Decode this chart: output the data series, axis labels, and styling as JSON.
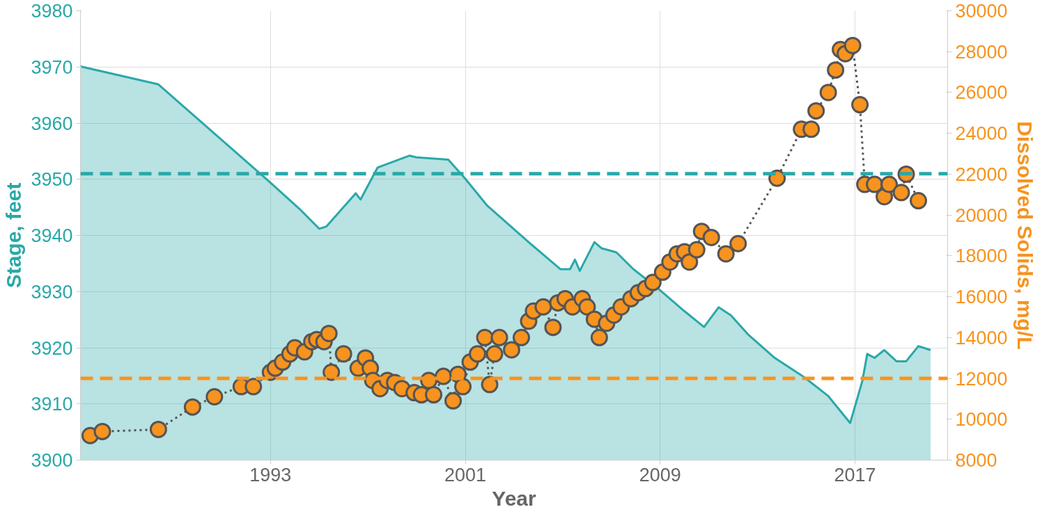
{
  "chart_data": {
    "type": "area",
    "xlabel": "Year",
    "ylabel": "Stage, feet",
    "y2label": "Dissolved Solids, mg/L",
    "xlim": [
      1985.2,
      2020.8
    ],
    "xticks": [
      1993,
      2001,
      2009,
      2017
    ],
    "ylim": [
      3900,
      3980
    ],
    "yticks": [
      3900,
      3910,
      3920,
      3930,
      3940,
      3950,
      3960,
      3970,
      3980
    ],
    "y2lim": [
      8000,
      30000
    ],
    "y2ticks": [
      8000,
      10000,
      12000,
      14000,
      16000,
      18000,
      20000,
      22000,
      24000,
      26000,
      28000,
      30000
    ],
    "grid": true,
    "series": [
      {
        "color": "#2aa8a8",
        "x": [
          1985.2,
          1988.4,
          1993.0,
          1994.2,
          1995.0,
          1995.3,
          1996.5,
          1996.7,
          1997.4,
          1998.7,
          1999.0,
          2000.3,
          2001.0,
          2001.9,
          2003.6,
          2004.9,
          2005.3,
          2005.5,
          2005.7,
          2006.3,
          2006.6,
          2007.2,
          2007.9,
          2008.9,
          2010.0,
          2010.8,
          2011.4,
          2011.9,
          2012.6,
          2013.7,
          2014.9,
          2015.9,
          2016.8,
          2017.3,
          2017.5,
          2017.8,
          2018.2,
          2018.7,
          2019.1,
          2019.6,
          2020.1
        ],
        "values": [
          3970.1,
          3966.9,
          3949.4,
          3944.7,
          3941.2,
          3941.6,
          3947.5,
          3946.4,
          3952.1,
          3954.2,
          3953.9,
          3953.5,
          3950.1,
          3945.3,
          3938.8,
          3934.0,
          3934.0,
          3935.7,
          3933.7,
          3938.8,
          3937.7,
          3937.0,
          3934.0,
          3930.6,
          3926.5,
          3923.7,
          3927.2,
          3925.8,
          3922.4,
          3918.2,
          3914.8,
          3911.4,
          3906.6,
          3914.1,
          3918.9,
          3918.2,
          3919.6,
          3917.6,
          3917.6,
          3920.3,
          3919.6
        ]
      },
      {
        "type": "line",
        "axis": "y2",
        "color": "#f7931e",
        "marker": "circle",
        "line_style": "dotted",
        "x": [
          1985.6,
          1986.1,
          1988.4,
          1989.8,
          1990.7,
          1991.8,
          1992.3,
          1993.0,
          1993.2,
          1993.5,
          1993.8,
          1994.0,
          1994.4,
          1994.7,
          1994.9,
          1995.2,
          1995.4,
          1995.5,
          1996.0,
          1996.6,
          1996.9,
          1997.1,
          1997.2,
          1997.5,
          1997.8,
          1998.1,
          1998.4,
          1998.9,
          1999.2,
          1999.5,
          1999.7,
          2000.1,
          2000.5,
          2000.7,
          2000.9,
          2001.2,
          2001.5,
          2001.8,
          2002.0,
          2002.2,
          2002.4,
          2002.9,
          2003.3,
          2003.6,
          2003.8,
          2004.2,
          2004.6,
          2004.8,
          2005.1,
          2005.4,
          2005.8,
          2006.0,
          2006.3,
          2006.5,
          2006.8,
          2007.1,
          2007.4,
          2007.8,
          2008.1,
          2008.4,
          2008.7,
          2009.1,
          2009.4,
          2009.7,
          2010.0,
          2010.2,
          2010.5,
          2010.7,
          2011.1,
          2011.7,
          2012.2,
          2013.8,
          2014.8,
          2015.2,
          2015.4,
          2015.9,
          2016.2,
          2016.4,
          2016.6,
          2016.9,
          2017.2,
          2017.4,
          2017.8,
          2018.2,
          2018.4,
          2018.9,
          2019.1,
          2019.6
        ],
        "values": [
          9200,
          9400,
          9500,
          10600,
          11100,
          11600,
          11600,
          12300,
          12500,
          12800,
          13200,
          13500,
          13300,
          13800,
          13900,
          13800,
          14200,
          12300,
          13200,
          12500,
          13000,
          12500,
          11900,
          11500,
          11900,
          11800,
          11500,
          11300,
          11200,
          11900,
          11200,
          12100,
          10900,
          12200,
          11600,
          12800,
          13200,
          14000,
          11700,
          13200,
          14000,
          13400,
          14000,
          14800,
          15300,
          15500,
          14500,
          15700,
          15900,
          15500,
          15900,
          15500,
          14900,
          14000,
          14700,
          15100,
          15500,
          15900,
          16200,
          16400,
          16700,
          17200,
          17700,
          18100,
          18200,
          17700,
          18300,
          19200,
          18900,
          18100,
          18600,
          21800,
          24200,
          24200,
          25100,
          26000,
          27100,
          28100,
          27900,
          28300,
          25400,
          21500,
          21500,
          20900,
          21500,
          21100,
          22000,
          20700
        ]
      }
    ],
    "ref_lines": [
      {
        "axis": "y",
        "value": 3951,
        "color": "#2aa8a8",
        "line_style": "dashed"
      },
      {
        "axis": "y2",
        "value": 12000,
        "color": "#f7931e",
        "line_style": "dashed"
      }
    ]
  }
}
